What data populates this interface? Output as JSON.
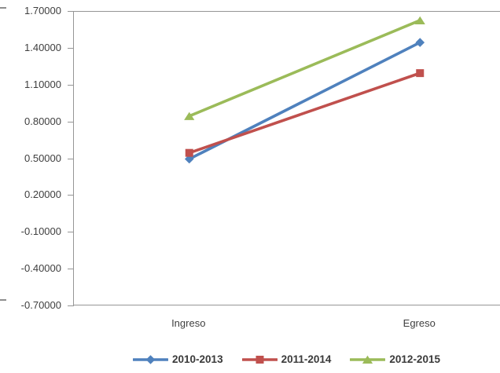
{
  "chart_data": {
    "type": "line",
    "title": "",
    "categories": [
      "Ingreso",
      "Egreso"
    ],
    "series": [
      {
        "name": "2010-2013",
        "values": [
          0.5,
          1.45
        ],
        "color": "#4F81BD",
        "marker": "diamond"
      },
      {
        "name": "2011-2014",
        "values": [
          0.55,
          1.2
        ],
        "color": "#C0504D",
        "marker": "square"
      },
      {
        "name": "2012-2015",
        "values": [
          0.85,
          1.63
        ],
        "color": "#9BBB59",
        "marker": "triangle"
      }
    ],
    "xlabel": "",
    "ylabel": "",
    "ylim": [
      -0.7,
      1.7
    ],
    "ytick_step": 0.3,
    "ytick_labels": [
      "1.70000",
      "1.40000",
      "1.10000",
      "0.80000",
      "0.50000",
      "0.20000",
      "-0.10000",
      "-0.40000",
      "-0.70000"
    ],
    "grid": "none",
    "legend_position": "bottom",
    "axis_color": "#969696",
    "label_color": "#3F3F3F"
  }
}
